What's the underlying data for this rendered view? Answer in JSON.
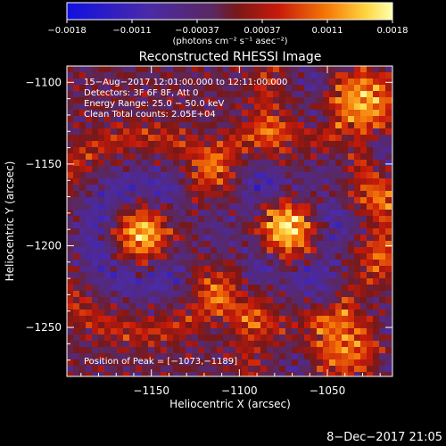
{
  "chart_data": {
    "type": "heatmap",
    "title": "Reconstructed RHESSI Image",
    "xlabel": "Heliocentric X (arcsec)",
    "ylabel": "Heliocentric Y (arcsec)",
    "xlim": [
      -1198,
      -1013
    ],
    "ylim": [
      -1280,
      -1090
    ],
    "x_ticks": [
      -1150,
      -1100,
      -1050
    ],
    "x_tick_labels": [
      "−1150",
      "−1100",
      "−1050"
    ],
    "y_ticks": [
      -1100,
      -1150,
      -1200,
      -1250
    ],
    "y_tick_labels": [
      "−1100",
      "−1150",
      "−1200",
      "−1250"
    ],
    "colorbar": {
      "range": [
        -0.0018,
        0.0018
      ],
      "tick_labels": [
        "−0.0018",
        "−0.0011",
        "−0.00037",
        "0.00037",
        "0.0011",
        "0.0018"
      ],
      "units": "(photons cm⁻² s⁻¹ asec⁻²)"
    },
    "sources": [
      {
        "x": -1155,
        "y": -1193,
        "peak": 0.0016
      },
      {
        "x": -1073,
        "y": -1189,
        "peak": 0.0018
      },
      {
        "x": -1030,
        "y": -1112,
        "peak": 0.0014
      },
      {
        "x": -1040,
        "y": -1262,
        "peak": 0.0011
      }
    ],
    "annotations": [
      "15−Aug−2017 12:01:00.000 to 12:11:00.000",
      "Detectors: 3F 6F 8F, Att 0",
      "Energy Range: 25.0 − 50.0 keV",
      "Clean     Total counts: 2.05E+04"
    ],
    "peak_label": "Position of Peak = [−1073,−1189]",
    "footer": "8−Dec−2017 21:05"
  }
}
